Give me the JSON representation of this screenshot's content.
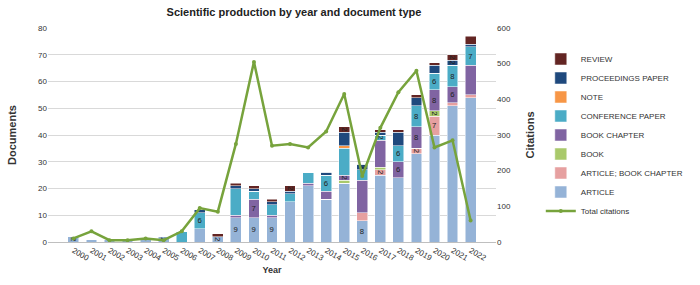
{
  "chart_data": {
    "type": "bar",
    "title": "Scientific production by year and document type",
    "x_label": "Year",
    "y_label": "Documents",
    "y2_label": "Citations",
    "categories": [
      "2000",
      "2001",
      "2002",
      "2003",
      "2004",
      "2005",
      "2006",
      "2007",
      "2008",
      "2009",
      "2010",
      "2011",
      "2012",
      "2013",
      "2014",
      "2015",
      "2016",
      "2017",
      "2018",
      "2019",
      "2020",
      "2021",
      "2022"
    ],
    "stacked": true,
    "data_labels": true,
    "grid": true,
    "legend": "right",
    "ylim": [
      0,
      80
    ],
    "yticks": [
      0,
      10,
      20,
      30,
      40,
      50,
      60,
      70,
      80
    ],
    "y2lim": [
      0,
      600
    ],
    "y2ticks": [
      0,
      100,
      200,
      300,
      400,
      500,
      600
    ],
    "series": [
      {
        "name": "ARTICLE",
        "color": "#95b3d7",
        "values": [
          2,
          1,
          1,
          1,
          1,
          2,
          0,
          5,
          2,
          9,
          9,
          9,
          15,
          21,
          16,
          22,
          8,
          25,
          24,
          33,
          40,
          51,
          54
        ]
      },
      {
        "name": "ARTICLE; BOOK CHAPTER",
        "color": "#e6a0a0",
        "values": [
          0,
          0,
          0,
          0,
          0,
          0,
          0,
          0,
          0,
          0,
          0,
          0,
          0,
          0,
          0,
          0,
          3,
          2,
          0,
          2,
          7,
          1,
          1
        ]
      },
      {
        "name": "BOOK",
        "color": "#a9c96b",
        "values": [
          0,
          0,
          0,
          0,
          0,
          0,
          0,
          0,
          0,
          0,
          0,
          0,
          0,
          0,
          0,
          1,
          0,
          1,
          0,
          0,
          2,
          0,
          0
        ]
      },
      {
        "name": "BOOK CHAPTER",
        "color": "#8064a2",
        "values": [
          0,
          0,
          0,
          0,
          0,
          0,
          0,
          0,
          0,
          1,
          7,
          1,
          0,
          1,
          3,
          2,
          12,
          10,
          6,
          8,
          8,
          6,
          11
        ]
      },
      {
        "name": "CONFERENCE PAPER",
        "color": "#4bacc6",
        "values": [
          0,
          0,
          0,
          0,
          0,
          0,
          4,
          6,
          0,
          10,
          3,
          4,
          3,
          4,
          6,
          10,
          4,
          2,
          6,
          8,
          6,
          8,
          7
        ]
      },
      {
        "name": "NOTE",
        "color": "#f79646",
        "values": [
          0,
          0,
          0,
          0,
          0,
          0,
          0,
          0,
          0,
          0,
          0,
          0,
          0,
          0,
          0,
          1,
          0,
          0,
          0,
          0,
          0,
          0,
          0
        ]
      },
      {
        "name": "PROCEEDINGS PAPER",
        "color": "#1f497d",
        "values": [
          0,
          0,
          0,
          0,
          0,
          0,
          0,
          1,
          0,
          1,
          1,
          1,
          1,
          0,
          1,
          5,
          2,
          1,
          5,
          3,
          3,
          2,
          1
        ]
      },
      {
        "name": "REVIEW",
        "color": "#632523",
        "values": [
          0,
          0,
          0,
          0,
          0,
          0,
          0,
          0,
          1,
          1,
          1,
          1,
          2,
          0,
          0,
          2,
          0,
          1,
          1,
          1,
          1,
          2,
          3
        ]
      },
      {
        "name": "Total citations",
        "type": "line",
        "axis": "y2",
        "color": "#77a33c",
        "marker": "circle",
        "values": [
          10,
          30,
          5,
          5,
          10,
          5,
          30,
          95,
          85,
          275,
          505,
          270,
          275,
          265,
          310,
          415,
          185,
          320,
          420,
          480,
          265,
          285,
          60
        ]
      }
    ]
  }
}
